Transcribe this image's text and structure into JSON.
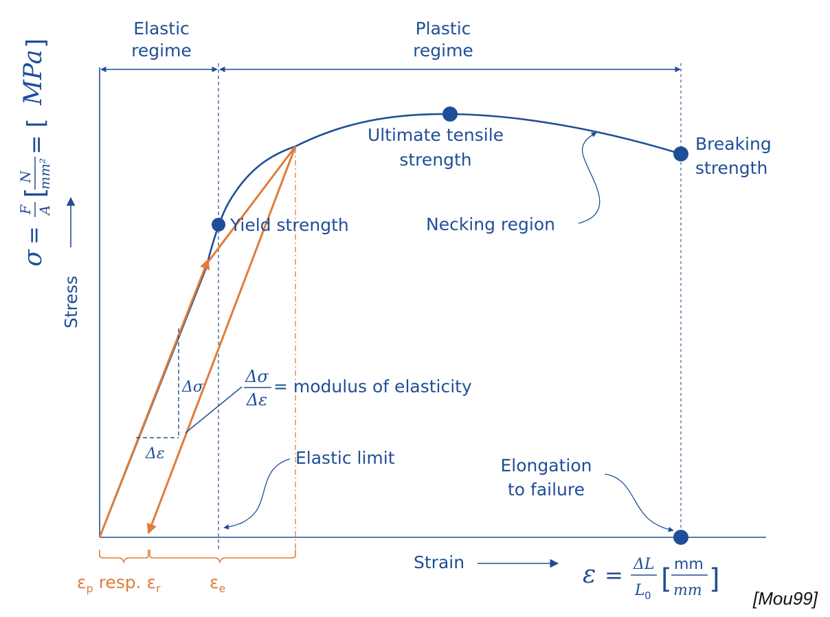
{
  "colors": {
    "blue": "#1f4e96",
    "orange": "#e07b39",
    "black": "#111111"
  },
  "regimes": {
    "elastic_line1": "Elastic",
    "elastic_line2": "regime",
    "plastic_line1": "Plastic",
    "plastic_line2": "regime"
  },
  "points": {
    "ultimate_line1": "Ultimate tensile",
    "ultimate_line2": "strength",
    "breaking_line1": "Breaking",
    "breaking_line2": "strength",
    "yield": "Yield strength"
  },
  "annotations": {
    "necking": "Necking region",
    "elastic_limit": "Elastic limit",
    "elongation_line1": "Elongation",
    "elongation_line2": "to failure",
    "modulus_text": "= modulus of elasticity",
    "delta_sigma": "Δσ",
    "delta_epsilon": "Δε"
  },
  "axes": {
    "y_label": "Stress",
    "x_label": "Strain",
    "y_formula": "σ = F/A [N/mm²] = [MPa]",
    "y_sigma": "σ",
    "y_eq1": "=",
    "y_F": "F",
    "y_A": "A",
    "y_N": "N",
    "y_mm2": "mm²",
    "y_eq2": "= [",
    "y_MPa": "MPa",
    "y_close": "]",
    "x_eps": "ε",
    "x_eq": "=",
    "x_dL": "ΔL",
    "x_L0": "L",
    "x_L0_sub": "0",
    "x_unit_num": "mm",
    "x_unit_den": "mm"
  },
  "strain_labels": {
    "ep": "ε",
    "ep_sub": "p",
    "resp": " resp. ",
    "er": "ε",
    "er_sub": "r",
    "ee": "ε",
    "ee_sub": "e"
  },
  "citation": "[Mou99]"
}
